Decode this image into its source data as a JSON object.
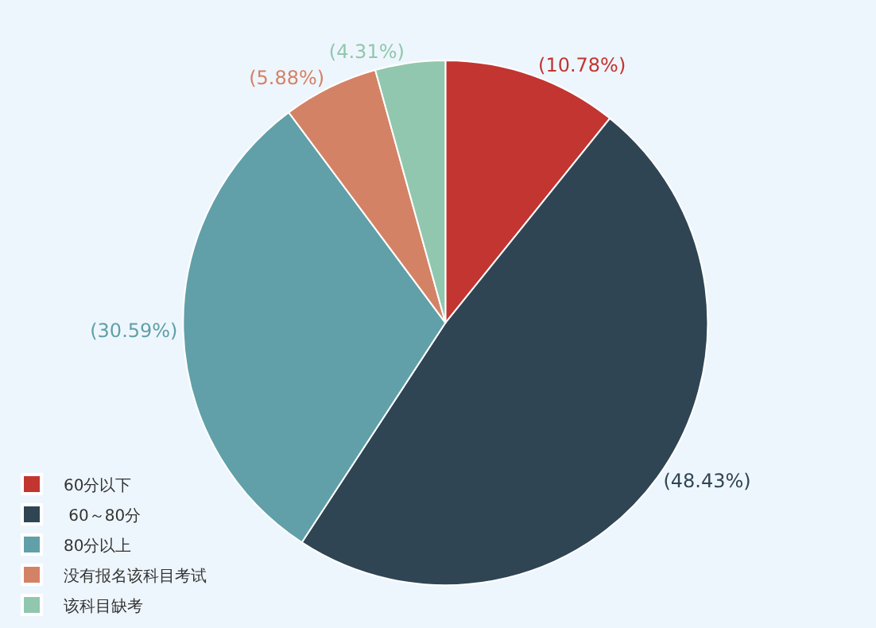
{
  "chart_data": {
    "type": "pie",
    "categories": [
      "60分以下",
      " 60～80分",
      "80分以上",
      "没有报名该科目考试",
      "该科目缺考"
    ],
    "values": [
      10.78,
      48.43,
      30.59,
      5.88,
      4.31
    ],
    "value_labels": [
      "(10.78%)",
      "(48.43%)",
      "(30.59%)",
      "(5.88%)",
      "(4.31%)"
    ],
    "colors": [
      "#c23531",
      "#2f4554",
      "#61a0a8",
      "#d48265",
      "#91c7ae"
    ],
    "legend": "bottom left"
  }
}
